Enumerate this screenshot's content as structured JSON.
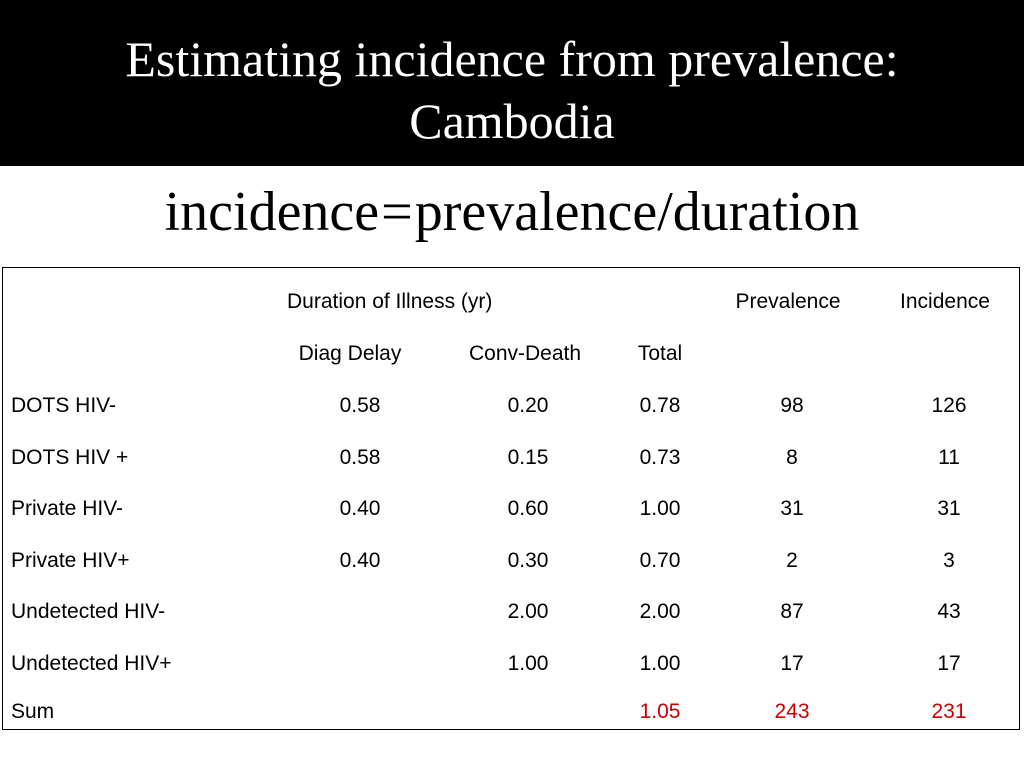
{
  "title": {
    "line1": "Estimating incidence from prevalence:",
    "line2": "Cambodia"
  },
  "formula": {
    "lhs": "incidence",
    "eq": "=",
    "rhs": "prevalence/duration"
  },
  "table": {
    "header1": {
      "duration": "Duration of Illness (yr)",
      "prevalence": "Prevalence",
      "incidence": "Incidence"
    },
    "header2": {
      "diag_delay": "Diag Delay",
      "conv_death": "Conv-Death",
      "total": "Total"
    },
    "rows": [
      {
        "label": "DOTS HIV-",
        "diag": "0.58",
        "conv": "0.20",
        "total": "0.78",
        "prev": "98",
        "inc": "126"
      },
      {
        "label": "DOTS HIV +",
        "diag": "0.58",
        "conv": "0.15",
        "total": "0.73",
        "prev": "8",
        "inc": "11"
      },
      {
        "label": "Private HIV-",
        "diag": "0.40",
        "conv": "0.60",
        "total": "1.00",
        "prev": "31",
        "inc": "31"
      },
      {
        "label": "Private HIV+",
        "diag": "0.40",
        "conv": "0.30",
        "total": "0.70",
        "prev": "2",
        "inc": "3"
      },
      {
        "label": "Undetected HIV-",
        "diag": "",
        "conv": "2.00",
        "total": "2.00",
        "prev": "87",
        "inc": "43"
      },
      {
        "label": "Undetected HIV+",
        "diag": "",
        "conv": "1.00",
        "total": "1.00",
        "prev": "17",
        "inc": "17"
      }
    ],
    "sum": {
      "label": "Sum",
      "total": "1.05",
      "prev": "243",
      "inc": "231"
    },
    "sum_color": "#cc0000"
  }
}
